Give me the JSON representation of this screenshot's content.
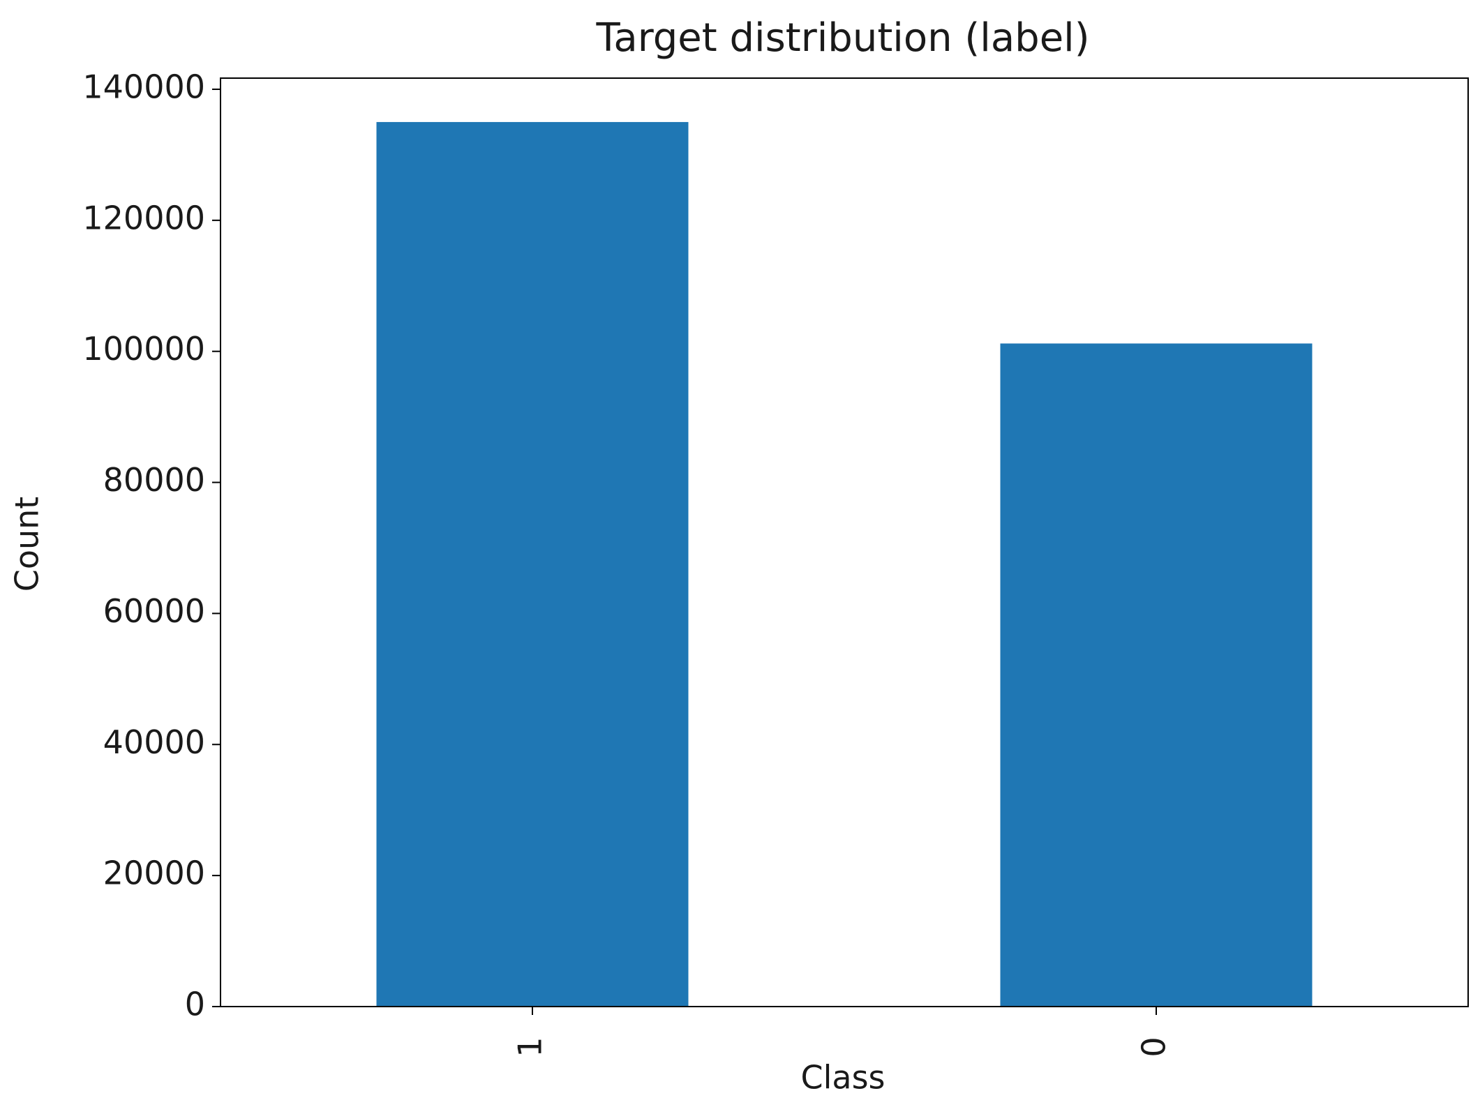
{
  "chart_data": {
    "type": "bar",
    "title": "Target distribution (label)",
    "x_label": "Class",
    "y_label": "Count",
    "categories": [
      "1",
      "0"
    ],
    "values": [
      135000,
      101200
    ],
    "color": "#1f77b4",
    "ylim": [
      0,
      141700
    ],
    "yticks": [
      0,
      20000,
      40000,
      60000,
      80000,
      100000,
      120000,
      140000
    ],
    "grid": false
  }
}
